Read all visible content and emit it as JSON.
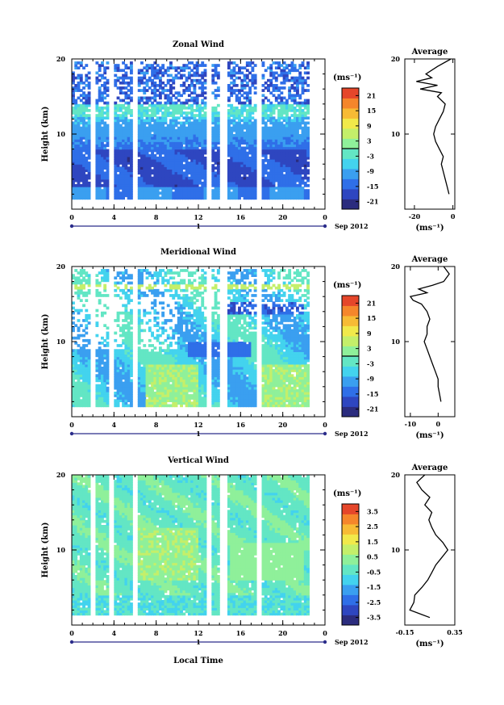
{
  "chart_data": [
    {
      "type": "heatmap",
      "title": "Zonal Wind",
      "ylabel": "Height (km)",
      "ylim": [
        0,
        20
      ],
      "yticks": [
        "10",
        "20"
      ],
      "xlim": [
        0,
        24
      ],
      "xticks": [
        "0",
        "4",
        "8",
        "12",
        "16",
        "20",
        "0"
      ],
      "date_tick": "1",
      "date_label": "Sep 2012",
      "xlabel": "",
      "colorbar": {
        "unit": "(ms⁻¹)",
        "range": [
          -24,
          24
        ],
        "ticks": [
          "21",
          "15",
          "9",
          "3",
          "-3",
          "-9",
          "-15",
          "-21"
        ],
        "contour_level": "0"
      },
      "data_gaps_local_time": [
        [
          1.7,
          2.3
        ],
        [
          3.5,
          4.0
        ],
        [
          5.8,
          6.2
        ],
        [
          12.8,
          13.3
        ],
        [
          14.0,
          14.8
        ],
        [
          17.6,
          18.0
        ]
      ],
      "profile": {
        "title": "Average",
        "xlabel": "(ms⁻¹)",
        "xticks": [
          "-20",
          "0"
        ],
        "xlim": [
          -25,
          1
        ],
        "yticks": [
          "10",
          "20"
        ],
        "height_km": [
          2,
          3,
          4,
          5,
          6,
          7,
          8,
          9,
          10,
          11,
          12,
          13,
          14,
          15,
          15.5,
          16,
          16.5,
          17,
          17.5,
          18,
          19,
          20
        ],
        "value_ms": [
          -2,
          -3,
          -4,
          -5,
          -6,
          -5,
          -7,
          -9,
          -10,
          -9,
          -7,
          -5,
          -4,
          -8,
          -6,
          -17,
          -8,
          -19,
          -11,
          -14,
          -8,
          -1
        ]
      }
    },
    {
      "type": "heatmap",
      "title": "Meridional Wind",
      "ylabel": "Height (km)",
      "ylim": [
        0,
        20
      ],
      "yticks": [
        "10",
        "20"
      ],
      "xlim": [
        0,
        24
      ],
      "xticks": [
        "0",
        "4",
        "8",
        "12",
        "16",
        "20",
        "0"
      ],
      "date_tick": "1",
      "date_label": "Sep 2012",
      "xlabel": "",
      "colorbar": {
        "unit": "(ms⁻¹)",
        "range": [
          -24,
          24
        ],
        "ticks": [
          "21",
          "15",
          "9",
          "3",
          "-3",
          "-9",
          "-15",
          "-21"
        ],
        "contour_level": "0"
      },
      "data_gaps_local_time": [
        [
          1.7,
          2.3
        ],
        [
          3.5,
          4.0
        ],
        [
          5.8,
          6.2
        ],
        [
          12.8,
          13.3
        ],
        [
          14.0,
          14.8
        ],
        [
          17.6,
          18.0
        ]
      ],
      "profile": {
        "title": "Average",
        "xlabel": "(ms⁻¹)",
        "xticks": [
          "-10",
          "0"
        ],
        "xlim": [
          -12,
          6
        ],
        "yticks": [
          "10",
          "20"
        ],
        "height_km": [
          2,
          3,
          4,
          5,
          6,
          7,
          8,
          9,
          10,
          11,
          12,
          13,
          14,
          15,
          15.5,
          16,
          16.5,
          17,
          17.5,
          18,
          19,
          20
        ],
        "value_ms": [
          1,
          0.5,
          0,
          0,
          -1,
          -2,
          -3,
          -4,
          -5,
          -4,
          -4,
          -3,
          -4,
          -6,
          -9,
          -10,
          -4,
          -7,
          -2,
          2,
          4,
          2
        ]
      }
    },
    {
      "type": "heatmap",
      "title": "Vertical Wind",
      "ylabel": "Height (km)",
      "ylim": [
        0,
        20
      ],
      "yticks": [
        "10",
        "20"
      ],
      "xlim": [
        0,
        24
      ],
      "xticks": [
        "0",
        "4",
        "8",
        "12",
        "16",
        "20",
        "0"
      ],
      "date_tick": "1",
      "date_label": "Sep 2012",
      "xlabel": "Local Time",
      "colorbar": {
        "unit": "(ms⁻¹)",
        "range": [
          -4,
          4
        ],
        "ticks": [
          "3.5",
          "2.5",
          "1.5",
          "0.5",
          "-0.5",
          "-1.5",
          "-2.5",
          "-3.5"
        ],
        "contour_level": ""
      },
      "data_gaps_local_time": [
        [
          1.7,
          2.3
        ],
        [
          3.5,
          4.0
        ],
        [
          5.8,
          6.2
        ],
        [
          12.8,
          13.3
        ],
        [
          14.0,
          14.8
        ],
        [
          17.6,
          18.0
        ]
      ],
      "profile": {
        "title": "Average",
        "xlabel": "(ms⁻¹)",
        "xticks": [
          "-0.15",
          "0.35"
        ],
        "xlim": [
          -0.15,
          0.35
        ],
        "yticks": [
          "10",
          "20"
        ],
        "height_km": [
          1,
          2,
          3,
          4,
          5,
          6,
          7,
          8,
          9,
          10,
          11,
          12,
          13,
          14,
          15,
          16,
          17,
          18,
          19,
          20
        ],
        "value_ms": [
          0.1,
          -0.1,
          -0.06,
          -0.05,
          0.02,
          0.08,
          0.12,
          0.16,
          0.22,
          0.28,
          0.23,
          0.16,
          0.12,
          0.09,
          0.12,
          0.05,
          0.1,
          0.02,
          -0.03,
          0.05
        ]
      }
    }
  ]
}
